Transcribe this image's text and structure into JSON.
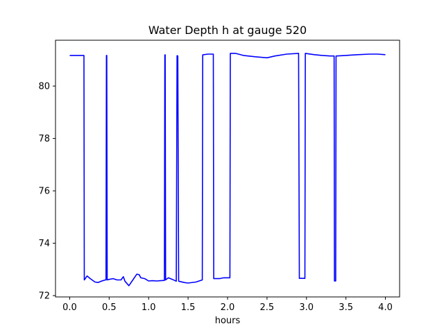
{
  "chart_data": {
    "type": "line",
    "title": "Water Depth h at gauge 520",
    "xlabel": "hours",
    "ylabel": "",
    "xlim": [
      -0.18,
      4.18
    ],
    "ylim": [
      71.95,
      81.75
    ],
    "xticks": [
      0.0,
      0.5,
      1.0,
      1.5,
      2.0,
      2.5,
      3.0,
      3.5,
      4.0
    ],
    "xtick_labels": [
      "0.0",
      "0.5",
      "1.0",
      "1.5",
      "2.0",
      "2.5",
      "3.0",
      "3.5",
      "4.0"
    ],
    "yticks": [
      72,
      74,
      76,
      78,
      80
    ],
    "ytick_labels": [
      "72",
      "74",
      "76",
      "78",
      "80"
    ],
    "grid": false,
    "series": [
      {
        "name": "",
        "color": "#0000ff",
        "x": [
          0.0,
          0.18,
          0.185,
          0.22,
          0.26,
          0.32,
          0.36,
          0.4,
          0.45,
          0.46,
          0.465,
          0.47,
          0.475,
          0.5,
          0.55,
          0.6,
          0.65,
          0.68,
          0.7,
          0.75,
          0.8,
          0.85,
          0.88,
          0.9,
          0.95,
          1.0,
          1.05,
          1.1,
          1.15,
          1.2,
          1.205,
          1.21,
          1.215,
          1.25,
          1.3,
          1.35,
          1.36,
          1.365,
          1.37,
          1.38,
          1.45,
          1.5,
          1.6,
          1.68,
          1.685,
          1.75,
          1.82,
          1.825,
          1.85,
          1.9,
          1.95,
          2.0,
          2.03,
          2.035,
          2.1,
          2.2,
          2.35,
          2.5,
          2.6,
          2.75,
          2.9,
          2.91,
          2.95,
          2.98,
          2.985,
          3.1,
          3.2,
          3.3,
          3.35,
          3.355,
          3.37,
          3.375,
          3.38,
          3.5,
          3.65,
          3.8,
          3.9,
          4.0
        ],
        "y": [
          81.17,
          81.17,
          72.6,
          72.75,
          72.65,
          72.52,
          72.5,
          72.55,
          72.6,
          72.6,
          81.17,
          81.17,
          72.6,
          72.62,
          72.65,
          72.6,
          72.6,
          72.72,
          72.55,
          72.38,
          72.6,
          72.82,
          72.8,
          72.68,
          72.65,
          72.56,
          72.57,
          72.56,
          72.57,
          72.58,
          81.19,
          81.19,
          72.6,
          72.68,
          72.62,
          72.55,
          81.16,
          81.16,
          81.14,
          72.55,
          72.5,
          72.48,
          72.52,
          72.6,
          81.19,
          81.22,
          81.22,
          72.65,
          72.65,
          72.65,
          72.68,
          72.68,
          72.68,
          81.25,
          81.25,
          81.17,
          81.12,
          81.08,
          81.15,
          81.22,
          81.25,
          72.66,
          72.66,
          72.66,
          81.25,
          81.2,
          81.17,
          81.15,
          81.15,
          72.56,
          72.56,
          81.15,
          81.15,
          81.17,
          81.2,
          81.22,
          81.22,
          81.2
        ]
      }
    ]
  }
}
